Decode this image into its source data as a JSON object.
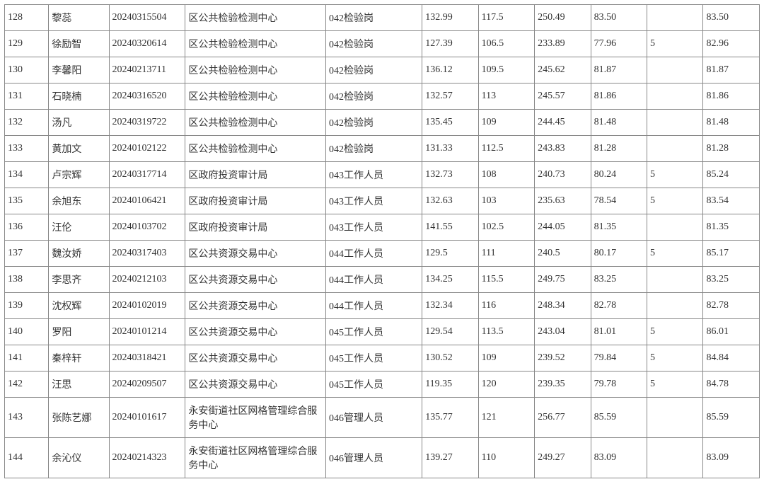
{
  "table": {
    "col_widths_pct": [
      5.5,
      7.5,
      9.5,
      17.5,
      12,
      7,
      7,
      7,
      7,
      7,
      7
    ],
    "text_color": "#333333",
    "border_color": "#888888",
    "font_size": 14,
    "rows": [
      [
        "128",
        "黎蕊",
        "20240315504",
        "区公共检验检测中心",
        "042检验岗",
        "132.99",
        "117.5",
        "250.49",
        "83.50",
        "",
        "83.50"
      ],
      [
        "129",
        "徐励智",
        "20240320614",
        "区公共检验检测中心",
        "042检验岗",
        "127.39",
        "106.5",
        "233.89",
        "77.96",
        "5",
        "82.96"
      ],
      [
        "130",
        "李馨阳",
        "20240213711",
        "区公共检验检测中心",
        "042检验岗",
        "136.12",
        "109.5",
        "245.62",
        "81.87",
        "",
        "81.87"
      ],
      [
        "131",
        "石晓楠",
        "20240316520",
        "区公共检验检测中心",
        "042检验岗",
        "132.57",
        "113",
        "245.57",
        "81.86",
        "",
        "81.86"
      ],
      [
        "132",
        "汤凡",
        "20240319722",
        "区公共检验检测中心",
        "042检验岗",
        "135.45",
        "109",
        "244.45",
        "81.48",
        "",
        "81.48"
      ],
      [
        "133",
        "黄加文",
        "20240102122",
        "区公共检验检测中心",
        "042检验岗",
        "131.33",
        "112.5",
        "243.83",
        "81.28",
        "",
        "81.28"
      ],
      [
        "134",
        "卢宗辉",
        "20240317714",
        "区政府投资审计局",
        "043工作人员",
        "132.73",
        "108",
        "240.73",
        "80.24",
        "5",
        "85.24"
      ],
      [
        "135",
        "余旭东",
        "20240106421",
        "区政府投资审计局",
        "043工作人员",
        "132.63",
        "103",
        "235.63",
        "78.54",
        "5",
        "83.54"
      ],
      [
        "136",
        "汪伦",
        "20240103702",
        "区政府投资审计局",
        "043工作人员",
        "141.55",
        "102.5",
        "244.05",
        "81.35",
        "",
        "81.35"
      ],
      [
        "137",
        "魏汝娇",
        "20240317403",
        "区公共资源交易中心",
        "044工作人员",
        "129.5",
        "111",
        "240.5",
        "80.17",
        "5",
        "85.17"
      ],
      [
        "138",
        "李思齐",
        "20240212103",
        "区公共资源交易中心",
        "044工作人员",
        "134.25",
        "115.5",
        "249.75",
        "83.25",
        "",
        "83.25"
      ],
      [
        "139",
        "沈权辉",
        "20240102019",
        "区公共资源交易中心",
        "044工作人员",
        "132.34",
        "116",
        "248.34",
        "82.78",
        "",
        "82.78"
      ],
      [
        "140",
        "罗阳",
        "20240101214",
        "区公共资源交易中心",
        "045工作人员",
        "129.54",
        "113.5",
        "243.04",
        "81.01",
        "5",
        "86.01"
      ],
      [
        "141",
        "秦梓轩",
        "20240318421",
        "区公共资源交易中心",
        "045工作人员",
        "130.52",
        "109",
        "239.52",
        "79.84",
        "5",
        "84.84"
      ],
      [
        "142",
        "汪思",
        "20240209507",
        "区公共资源交易中心",
        "045工作人员",
        "119.35",
        "120",
        "239.35",
        "79.78",
        "5",
        "84.78"
      ],
      [
        "143",
        "张陈艺娜",
        "20240101617",
        "永安街道社区网格管理综合服务中心",
        "046管理人员",
        "135.77",
        "121",
        "256.77",
        "85.59",
        "",
        "85.59"
      ],
      [
        "144",
        "余沁仪",
        "20240214323",
        "永安街道社区网格管理综合服务中心",
        "046管理人员",
        "139.27",
        "110",
        "249.27",
        "83.09",
        "",
        "83.09"
      ]
    ]
  }
}
